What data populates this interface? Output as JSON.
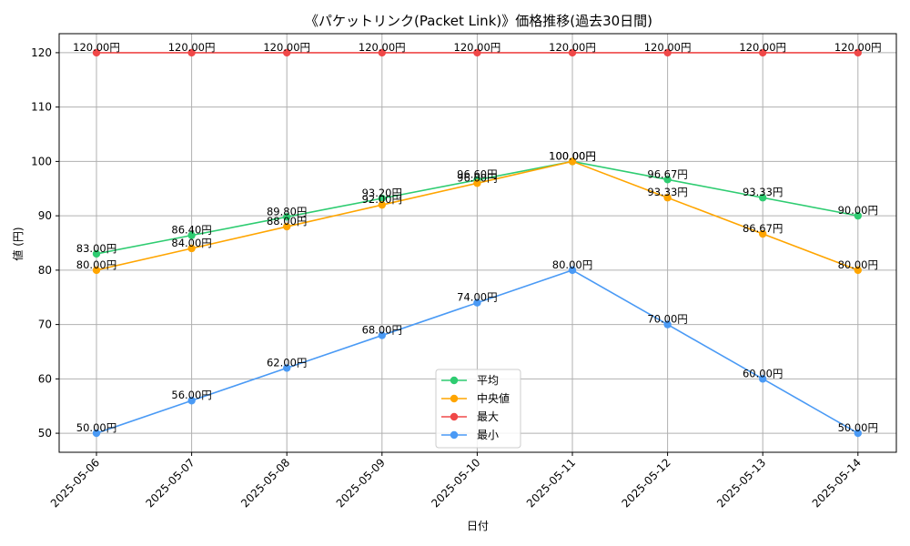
{
  "chart_data": {
    "type": "line",
    "title": "《パケットリンク(Packet Link)》価格推移(過去30日間)",
    "xlabel": "日付",
    "ylabel": "値 (円)",
    "categories": [
      "2025-05-06",
      "2025-05-07",
      "2025-05-08",
      "2025-05-09",
      "2025-05-10",
      "2025-05-11",
      "2025-05-12",
      "2025-05-13",
      "2025-05-14"
    ],
    "ylim": [
      46.5,
      123.5
    ],
    "yticks": [
      50,
      60,
      70,
      80,
      90,
      100,
      110,
      120
    ],
    "grid": true,
    "legend_position": "lower-center",
    "label_suffix": "円",
    "series": [
      {
        "name": "平均",
        "color": "#2ecc71",
        "values": [
          83.0,
          86.4,
          89.8,
          93.2,
          96.6,
          100.0,
          96.67,
          93.33,
          90.0
        ]
      },
      {
        "name": "中央値",
        "color": "#ffa500",
        "values": [
          80.0,
          84.0,
          88.0,
          92.0,
          96.0,
          100.0,
          93.33,
          86.67,
          80.0
        ]
      },
      {
        "name": "最大",
        "color": "#f04848",
        "values": [
          120.0,
          120.0,
          120.0,
          120.0,
          120.0,
          120.0,
          120.0,
          120.0,
          120.0
        ]
      },
      {
        "name": "最小",
        "color": "#4a9af5",
        "values": [
          50.0,
          56.0,
          62.0,
          68.0,
          74.0,
          80.0,
          70.0,
          60.0,
          50.0
        ]
      }
    ]
  }
}
